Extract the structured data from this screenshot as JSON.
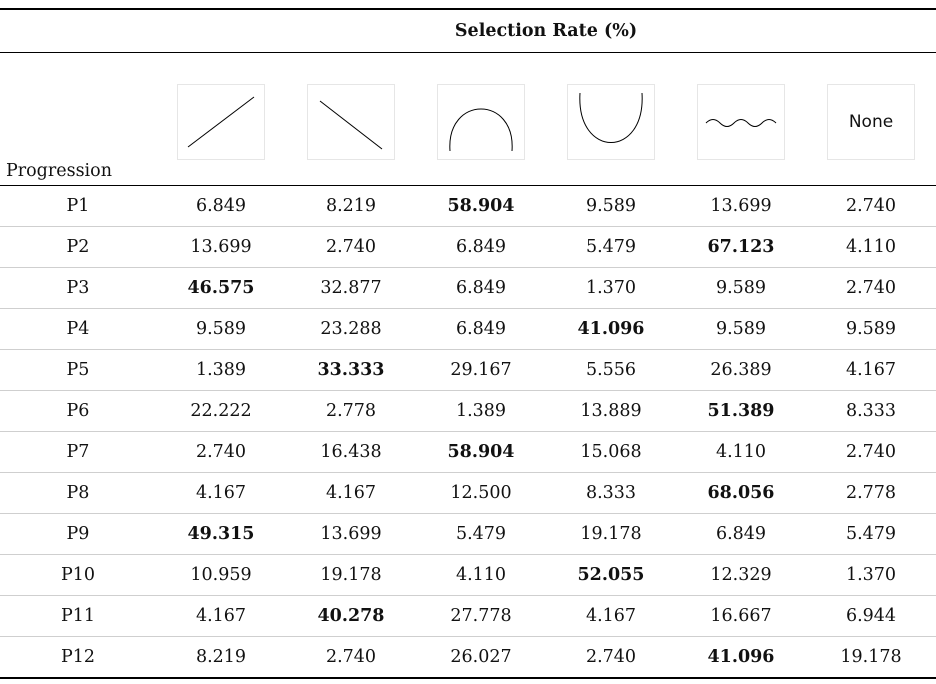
{
  "table": {
    "group_header": "Selection Rate (%)",
    "row_header": "Progression",
    "columns": [
      {
        "icon": "increasing-line-icon"
      },
      {
        "icon": "decreasing-line-icon"
      },
      {
        "icon": "inverted-u-curve-icon"
      },
      {
        "icon": "u-curve-icon"
      },
      {
        "icon": "wave-curve-icon"
      },
      {
        "icon": "none-text",
        "label": "None"
      }
    ],
    "rows": [
      {
        "label": "P1",
        "values": [
          "6.849",
          "8.219",
          "58.904",
          "9.589",
          "13.699",
          "2.740"
        ],
        "bold_index": 2
      },
      {
        "label": "P2",
        "values": [
          "13.699",
          "2.740",
          "6.849",
          "5.479",
          "67.123",
          "4.110"
        ],
        "bold_index": 4
      },
      {
        "label": "P3",
        "values": [
          "46.575",
          "32.877",
          "6.849",
          "1.370",
          "9.589",
          "2.740"
        ],
        "bold_index": 0
      },
      {
        "label": "P4",
        "values": [
          "9.589",
          "23.288",
          "6.849",
          "41.096",
          "9.589",
          "9.589"
        ],
        "bold_index": 3
      },
      {
        "label": "P5",
        "values": [
          "1.389",
          "33.333",
          "29.167",
          "5.556",
          "26.389",
          "4.167"
        ],
        "bold_index": 1
      },
      {
        "label": "P6",
        "values": [
          "22.222",
          "2.778",
          "1.389",
          "13.889",
          "51.389",
          "8.333"
        ],
        "bold_index": 4
      },
      {
        "label": "P7",
        "values": [
          "2.740",
          "16.438",
          "58.904",
          "15.068",
          "4.110",
          "2.740"
        ],
        "bold_index": 2
      },
      {
        "label": "P8",
        "values": [
          "4.167",
          "4.167",
          "12.500",
          "8.333",
          "68.056",
          "2.778"
        ],
        "bold_index": 4
      },
      {
        "label": "P9",
        "values": [
          "49.315",
          "13.699",
          "5.479",
          "19.178",
          "6.849",
          "5.479"
        ],
        "bold_index": 0
      },
      {
        "label": "P10",
        "values": [
          "10.959",
          "19.178",
          "4.110",
          "52.055",
          "12.329",
          "1.370"
        ],
        "bold_index": 3
      },
      {
        "label": "P11",
        "values": [
          "4.167",
          "40.278",
          "27.778",
          "4.167",
          "16.667",
          "6.944"
        ],
        "bold_index": 1
      },
      {
        "label": "P12",
        "values": [
          "8.219",
          "2.740",
          "26.027",
          "2.740",
          "41.096",
          "19.178"
        ],
        "bold_index": 4
      }
    ]
  }
}
